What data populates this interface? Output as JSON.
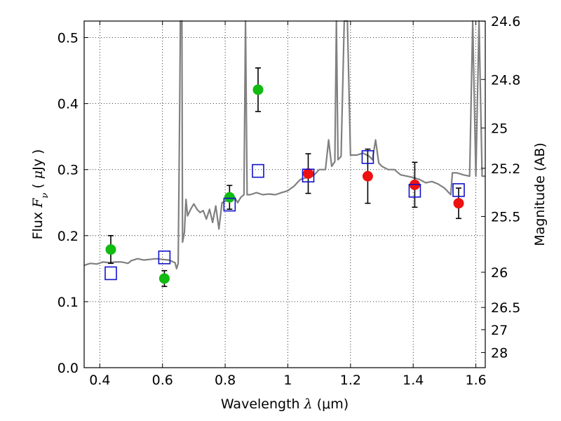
{
  "chart_data": {
    "type": "scatter",
    "xlabel": "Wavelength  λ (μm)",
    "xlabel_parts": {
      "prefix": "Wavelength  ",
      "symbol": "λ",
      "unit": "(μm)"
    },
    "ylabel": "Flux  Fν  ( μJy )",
    "ylabel_parts": {
      "prefix": "Flux  ",
      "symbol": "F",
      "subscript": "ν",
      "unit_open": "  ( ",
      "unit_mu": "μ",
      "unit_rest": "Jy )"
    },
    "y2label": "Magnitude (AB)",
    "xlim": [
      0.35,
      1.63
    ],
    "ylim": [
      0.0,
      0.525
    ],
    "grid": true,
    "x_ticks": [
      "0.4",
      "0.6",
      "0.8",
      "1",
      "1.2",
      "1.4",
      "1.6"
    ],
    "x_tick_values": [
      0.4,
      0.6,
      0.8,
      1.0,
      1.2,
      1.4,
      1.6
    ],
    "y_ticks": [
      "0.0",
      "0.1",
      "0.2",
      "0.3",
      "0.4",
      "0.5"
    ],
    "y_tick_values": [
      0.0,
      0.1,
      0.2,
      0.3,
      0.4,
      0.5
    ],
    "mag_ticks": [
      "24.6",
      "24.8",
      "25",
      "25.2",
      "25.5",
      "26",
      "26.5",
      "27",
      "28"
    ],
    "mag_tick_values": [
      24.6,
      24.8,
      25.0,
      25.2,
      25.5,
      26.0,
      26.5,
      27.0,
      28.0
    ],
    "colors": {
      "spectrum": "#808080",
      "green": "#11bb11",
      "red": "#ee1111",
      "model_box": "#1111cc",
      "error": "#000000"
    },
    "series": [
      {
        "marker": "circle-green",
        "points": [
          {
            "x": 0.435,
            "y": 0.179,
            "err": 0.021
          },
          {
            "x": 0.606,
            "y": 0.135,
            "err": 0.012
          },
          {
            "x": 0.814,
            "y": 0.258,
            "err": 0.018
          },
          {
            "x": 0.905,
            "y": 0.421,
            "err": 0.033
          }
        ]
      },
      {
        "marker": "circle-red",
        "points": [
          {
            "x": 1.065,
            "y": 0.294,
            "err": 0.03
          },
          {
            "x": 1.255,
            "y": 0.29,
            "err": 0.041
          },
          {
            "x": 1.405,
            "y": 0.277,
            "err": 0.034
          },
          {
            "x": 1.545,
            "y": 0.249,
            "err": 0.023
          }
        ]
      },
      {
        "marker": "square-open",
        "points": [
          {
            "x": 0.435,
            "y": 0.143
          },
          {
            "x": 0.606,
            "y": 0.167
          },
          {
            "x": 0.814,
            "y": 0.247
          },
          {
            "x": 0.905,
            "y": 0.298
          },
          {
            "x": 1.065,
            "y": 0.291
          },
          {
            "x": 1.255,
            "y": 0.319
          },
          {
            "x": 1.405,
            "y": 0.268
          },
          {
            "x": 1.545,
            "y": 0.269
          }
        ]
      },
      {
        "marker": "line-spectrum",
        "points": [
          [
            0.35,
            0.155
          ],
          [
            0.37,
            0.158
          ],
          [
            0.39,
            0.157
          ],
          [
            0.41,
            0.16
          ],
          [
            0.43,
            0.159
          ],
          [
            0.45,
            0.16
          ],
          [
            0.47,
            0.16
          ],
          [
            0.49,
            0.158
          ],
          [
            0.5,
            0.162
          ],
          [
            0.52,
            0.165
          ],
          [
            0.54,
            0.163
          ],
          [
            0.56,
            0.164
          ],
          [
            0.58,
            0.165
          ],
          [
            0.6,
            0.164
          ],
          [
            0.62,
            0.163
          ],
          [
            0.64,
            0.159
          ],
          [
            0.645,
            0.15
          ],
          [
            0.65,
            0.158
          ],
          [
            0.655,
            0.4
          ],
          [
            0.657,
            0.525
          ],
          [
            0.662,
            0.525
          ],
          [
            0.664,
            0.19
          ],
          [
            0.67,
            0.205
          ],
          [
            0.675,
            0.255
          ],
          [
            0.68,
            0.23
          ],
          [
            0.69,
            0.24
          ],
          [
            0.7,
            0.248
          ],
          [
            0.71,
            0.24
          ],
          [
            0.72,
            0.235
          ],
          [
            0.73,
            0.238
          ],
          [
            0.74,
            0.225
          ],
          [
            0.75,
            0.24
          ],
          [
            0.76,
            0.22
          ],
          [
            0.77,
            0.245
          ],
          [
            0.78,
            0.21
          ],
          [
            0.79,
            0.25
          ],
          [
            0.8,
            0.252
          ],
          [
            0.81,
            0.255
          ],
          [
            0.82,
            0.253
          ],
          [
            0.83,
            0.258
          ],
          [
            0.84,
            0.25
          ],
          [
            0.85,
            0.258
          ],
          [
            0.86,
            0.262
          ],
          [
            0.865,
            0.525
          ],
          [
            0.87,
            0.262
          ],
          [
            0.88,
            0.262
          ],
          [
            0.9,
            0.265
          ],
          [
            0.92,
            0.262
          ],
          [
            0.94,
            0.263
          ],
          [
            0.96,
            0.262
          ],
          [
            0.98,
            0.265
          ],
          [
            1.0,
            0.268
          ],
          [
            1.02,
            0.275
          ],
          [
            1.04,
            0.285
          ],
          [
            1.06,
            0.288
          ],
          [
            1.08,
            0.29
          ],
          [
            1.1,
            0.3
          ],
          [
            1.12,
            0.3
          ],
          [
            1.13,
            0.345
          ],
          [
            1.14,
            0.305
          ],
          [
            1.15,
            0.312
          ],
          [
            1.155,
            0.525
          ],
          [
            1.16,
            0.315
          ],
          [
            1.17,
            0.32
          ],
          [
            1.18,
            0.525
          ],
          [
            1.19,
            0.525
          ],
          [
            1.2,
            0.322
          ],
          [
            1.22,
            0.322
          ],
          [
            1.24,
            0.325
          ],
          [
            1.26,
            0.32
          ],
          [
            1.27,
            0.315
          ],
          [
            1.28,
            0.345
          ],
          [
            1.29,
            0.31
          ],
          [
            1.3,
            0.305
          ],
          [
            1.32,
            0.3
          ],
          [
            1.34,
            0.3
          ],
          [
            1.36,
            0.292
          ],
          [
            1.38,
            0.29
          ],
          [
            1.4,
            0.288
          ],
          [
            1.42,
            0.285
          ],
          [
            1.44,
            0.28
          ],
          [
            1.46,
            0.282
          ],
          [
            1.48,
            0.278
          ],
          [
            1.5,
            0.272
          ],
          [
            1.52,
            0.262
          ],
          [
            1.525,
            0.295
          ],
          [
            1.54,
            0.295
          ],
          [
            1.56,
            0.292
          ],
          [
            1.58,
            0.29
          ],
          [
            1.59,
            0.525
          ],
          [
            1.6,
            0.29
          ],
          [
            1.61,
            0.525
          ],
          [
            1.62,
            0.29
          ],
          [
            1.63,
            0.29
          ]
        ]
      }
    ]
  }
}
